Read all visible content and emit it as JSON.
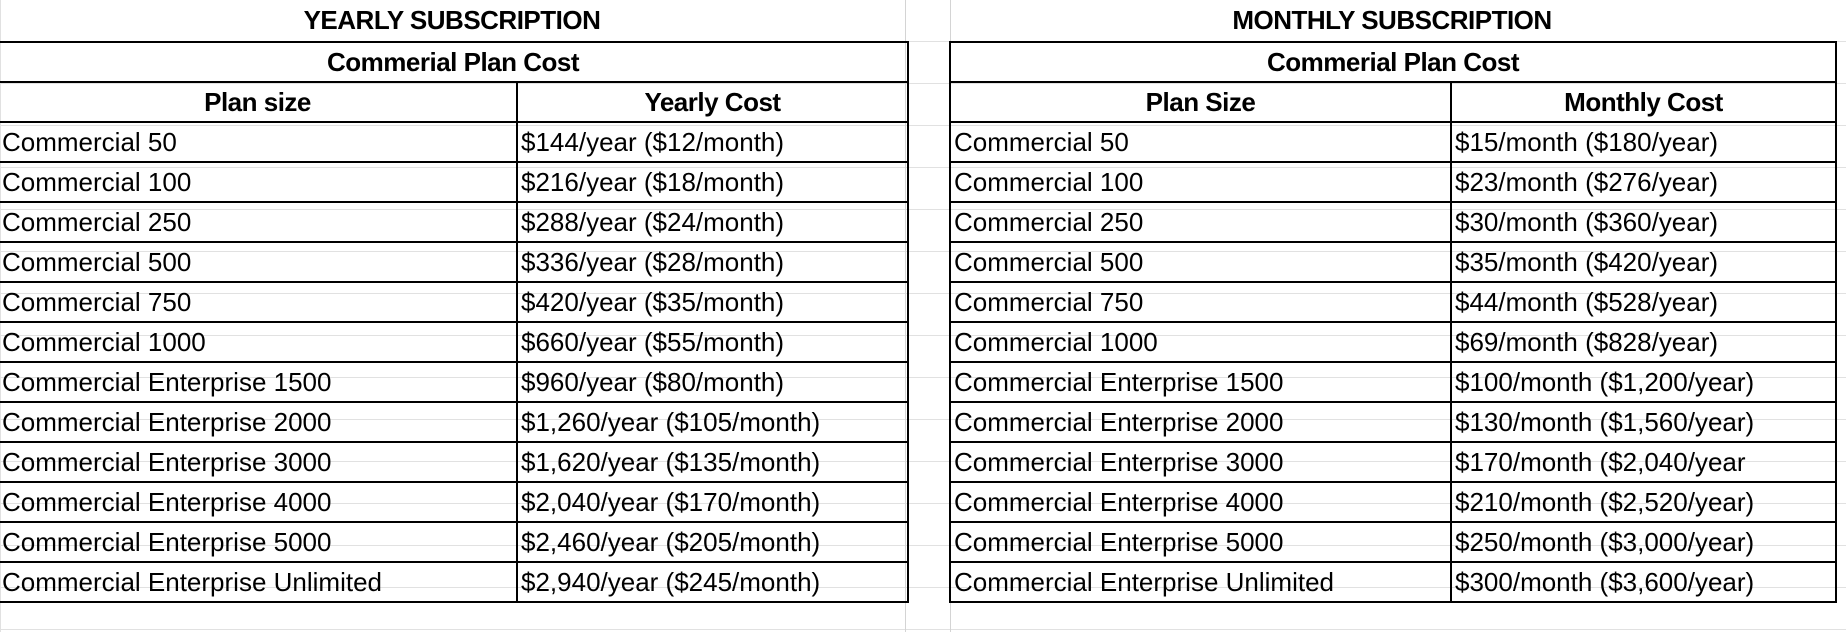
{
  "yearly": {
    "title": "YEARLY SUBSCRIPTION",
    "subtitle": "Commerial Plan Cost",
    "headers": [
      "Plan size",
      "Yearly Cost"
    ],
    "rows": [
      [
        "Commercial 50",
        "$144/year ($12/month)"
      ],
      [
        "Commercial 100",
        "$216/year ($18/month)"
      ],
      [
        "Commercial 250",
        "$288/year ($24/month)"
      ],
      [
        "Commercial 500",
        "$336/year ($28/month)"
      ],
      [
        "Commercial 750",
        "$420/year ($35/month)"
      ],
      [
        "Commercial 1000",
        "$660/year ($55/month)"
      ],
      [
        "Commercial Enterprise 1500",
        "$960/year ($80/month)"
      ],
      [
        "Commercial Enterprise 2000",
        "$1,260/year ($105/month)"
      ],
      [
        "Commercial Enterprise 3000",
        "$1,620/year ($135/month)"
      ],
      [
        "Commercial Enterprise 4000",
        "$2,040/year ($170/month)"
      ],
      [
        "Commercial Enterprise 5000",
        "$2,460/year ($205/month)"
      ],
      [
        "Commercial Enterprise Unlimited",
        "$2,940/year ($245/month)"
      ]
    ]
  },
  "monthly": {
    "title": "MONTHLY SUBSCRIPTION",
    "subtitle": "Commerial Plan Cost",
    "headers": [
      "Plan Size",
      "Monthly Cost"
    ],
    "rows": [
      [
        "Commercial 50",
        "$15/month ($180/year)"
      ],
      [
        "Commercial 100",
        "$23/month ($276/year)"
      ],
      [
        "Commercial 250",
        "$30/month ($360/year)"
      ],
      [
        "Commercial 500",
        "$35/month ($420/year)"
      ],
      [
        "Commercial 750",
        "$44/month ($528/year)"
      ],
      [
        "Commercial 1000",
        "$69/month ($828/year)"
      ],
      [
        "Commercial Enterprise 1500",
        "$100/month ($1,200/year)"
      ],
      [
        "Commercial Enterprise 2000",
        "$130/month ($1,560/year)"
      ],
      [
        "Commercial Enterprise 3000",
        "$170/month ($2,040/year"
      ],
      [
        "Commercial Enterprise 4000",
        "$210/month ($2,520/year)"
      ],
      [
        "Commercial Enterprise 5000",
        "$250/month ($3,000/year)"
      ],
      [
        "Commercial Enterprise Unlimited",
        "$300/month ($3,600/year)"
      ]
    ]
  }
}
